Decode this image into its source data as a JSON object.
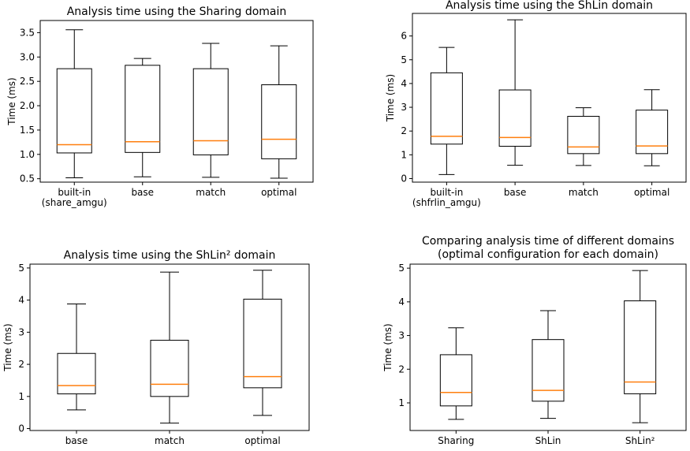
{
  "chart_data": [
    {
      "type": "box",
      "title": "Analysis time using the Sharing domain",
      "ylabel": "Time (ms)",
      "ylim": [
        0.43,
        3.75
      ],
      "yticks": [
        0.5,
        1.0,
        1.5,
        2.0,
        2.5,
        3.0,
        3.5
      ],
      "ytick_labels": [
        "0.5",
        "1.0",
        "1.5",
        "2.0",
        "2.5",
        "3.0",
        "3.5"
      ],
      "categories": [
        [
          "built-in",
          "(share_amgu)"
        ],
        [
          "base"
        ],
        [
          "match"
        ],
        [
          "optimal"
        ]
      ],
      "boxes": [
        {
          "min": 0.52,
          "q1": 1.03,
          "median": 1.2,
          "q3": 2.76,
          "max": 3.56
        },
        {
          "min": 0.54,
          "q1": 1.04,
          "median": 1.26,
          "q3": 2.83,
          "max": 2.97
        },
        {
          "min": 0.53,
          "q1": 0.99,
          "median": 1.28,
          "q3": 2.76,
          "max": 3.28
        },
        {
          "min": 0.51,
          "q1": 0.91,
          "median": 1.31,
          "q3": 2.43,
          "max": 3.23
        }
      ]
    },
    {
      "type": "box",
      "title": "Analysis time using the ShLin domain",
      "ylabel": "Time (ms)",
      "ylim": [
        -0.15,
        6.95
      ],
      "yticks": [
        0,
        1,
        2,
        3,
        4,
        5,
        6
      ],
      "ytick_labels": [
        "0",
        "1",
        "2",
        "3",
        "4",
        "5",
        "6"
      ],
      "categories": [
        [
          "built-in",
          "(shfrlin_amgu)"
        ],
        [
          "base"
        ],
        [
          "match"
        ],
        [
          "optimal"
        ]
      ],
      "boxes": [
        {
          "min": 0.17,
          "q1": 1.45,
          "median": 1.78,
          "q3": 4.45,
          "max": 5.52
        },
        {
          "min": 0.56,
          "q1": 1.36,
          "median": 1.73,
          "q3": 3.73,
          "max": 6.68
        },
        {
          "min": 0.55,
          "q1": 1.05,
          "median": 1.33,
          "q3": 2.62,
          "max": 2.98
        },
        {
          "min": 0.54,
          "q1": 1.05,
          "median": 1.37,
          "q3": 2.88,
          "max": 3.74
        }
      ]
    },
    {
      "type": "box",
      "title": "Analysis time using the ShLin² domain",
      "ylabel": "Time (ms)",
      "ylim": [
        -0.06,
        5.12
      ],
      "yticks": [
        0,
        1,
        2,
        3,
        4,
        5
      ],
      "ytick_labels": [
        "0",
        "1",
        "2",
        "3",
        "4",
        "5"
      ],
      "categories": [
        [
          "base"
        ],
        [
          "match"
        ],
        [
          "optimal"
        ]
      ],
      "boxes": [
        {
          "min": 0.58,
          "q1": 1.08,
          "median": 1.34,
          "q3": 2.34,
          "max": 3.88
        },
        {
          "min": 0.17,
          "q1": 1.0,
          "median": 1.38,
          "q3": 2.75,
          "max": 4.87
        },
        {
          "min": 0.41,
          "q1": 1.27,
          "median": 1.62,
          "q3": 4.03,
          "max": 4.93
        }
      ]
    },
    {
      "type": "box",
      "title": "Comparing analysis time of different domains",
      "subtitle": "(optimal configuration for each domain)",
      "ylabel": "Time (ms)",
      "ylim": [
        0.18,
        5.12
      ],
      "yticks": [
        1,
        2,
        3,
        4,
        5
      ],
      "ytick_labels": [
        "1",
        "2",
        "3",
        "4",
        "5"
      ],
      "categories": [
        [
          "Sharing"
        ],
        [
          "ShLin"
        ],
        [
          "ShLin²"
        ]
      ],
      "boxes": [
        {
          "min": 0.51,
          "q1": 0.91,
          "median": 1.31,
          "q3": 2.43,
          "max": 3.23
        },
        {
          "min": 0.54,
          "q1": 1.05,
          "median": 1.37,
          "q3": 2.88,
          "max": 3.74
        },
        {
          "min": 0.41,
          "q1": 1.27,
          "median": 1.62,
          "q3": 4.03,
          "max": 4.93
        }
      ]
    }
  ],
  "colors": {
    "median": "#ff7f0e",
    "box": "#000000",
    "background": "#ffffff"
  }
}
